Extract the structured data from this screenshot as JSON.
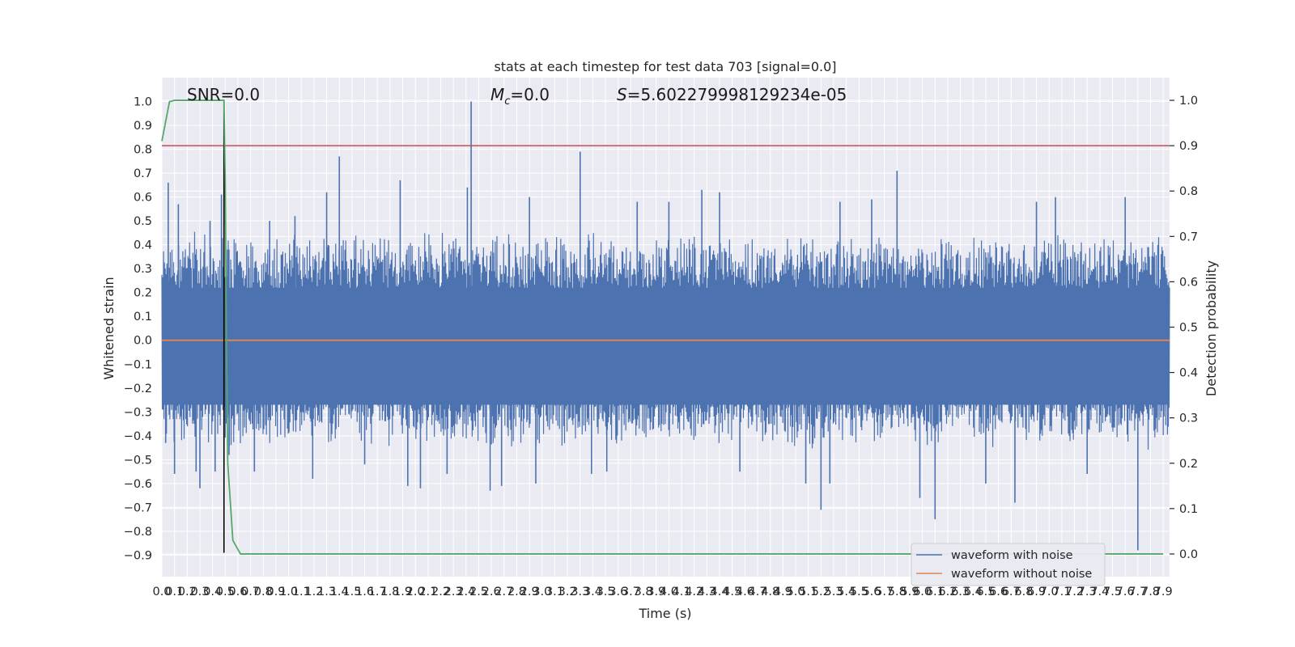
{
  "chart_data": {
    "type": "line",
    "title": "stats at each timestep for test data 703 [signal=0.0]",
    "xlabel": "Time (s)",
    "ylabel": "Whitened strain",
    "y2label": "Detection probability",
    "xlim": [
      0.0,
      7.95
    ],
    "ylim": [
      -0.99,
      1.1
    ],
    "y2lim": [
      -0.05,
      1.05
    ],
    "xticks": [
      0.0,
      0.1,
      0.2,
      0.3,
      0.4,
      0.5,
      0.6,
      0.7,
      0.8,
      0.9,
      1.0,
      1.1,
      1.2,
      1.3,
      1.4,
      1.5,
      1.6,
      1.7,
      1.8,
      1.9,
      2.0,
      2.1,
      2.2,
      2.3,
      2.4,
      2.5,
      2.6,
      2.7,
      2.8,
      2.9,
      3.0,
      3.1,
      3.2,
      3.3,
      3.4,
      3.5,
      3.6,
      3.7,
      3.8,
      3.9,
      4.0,
      4.1,
      4.2,
      4.3,
      4.4,
      4.5,
      4.6,
      4.7,
      4.8,
      4.9,
      5.0,
      5.1,
      5.2,
      5.3,
      5.4,
      5.5,
      5.6,
      5.7,
      5.8,
      5.9,
      6.0,
      6.1,
      6.2,
      6.3,
      6.4,
      6.5,
      6.6,
      6.7,
      6.8,
      6.9,
      7.0,
      7.1,
      7.2,
      7.3,
      7.4,
      7.5,
      7.6,
      7.7,
      7.8,
      7.9
    ],
    "xtick_labels": [
      "0.0",
      "0.1",
      "0.2",
      "0.3",
      "0.4",
      "0.5",
      "0.6",
      "0.7",
      "0.8",
      "0.9",
      "1.0",
      "1.1",
      "1.2",
      "1.3",
      "1.4",
      "1.5",
      "1.6",
      "1.7",
      "1.8",
      "1.9",
      "2.0",
      "2.1",
      "2.2",
      "2.3",
      "2.4",
      "2.5",
      "2.6",
      "2.7",
      "2.8",
      "2.9",
      "3.0",
      "3.1",
      "3.2",
      "3.3",
      "3.4",
      "3.5",
      "3.6",
      "3.7",
      "3.8",
      "3.9",
      "4.0",
      "4.1",
      "4.2",
      "4.3",
      "4.4",
      "4.5",
      "4.6",
      "4.7",
      "4.8",
      "4.9",
      "5.0",
      "5.1",
      "5.2",
      "5.3",
      "5.4",
      "5.5",
      "5.6",
      "5.7",
      "5.8",
      "5.9",
      "6.0",
      "6.1",
      "6.2",
      "6.3",
      "6.4",
      "6.5",
      "6.6",
      "6.7",
      "6.8",
      "6.9",
      "7.0",
      "7.1",
      "7.2",
      "7.3",
      "7.4",
      "7.5",
      "7.6",
      "7.7",
      "7.8",
      "7.9"
    ],
    "yticks": [
      1.0,
      0.9,
      0.8,
      0.7,
      0.6,
      0.5,
      0.4,
      0.3,
      0.2,
      0.1,
      0.0,
      -0.1,
      -0.2,
      -0.3,
      -0.4,
      -0.5,
      -0.6,
      -0.7,
      -0.8,
      -0.9
    ],
    "ytick_labels": [
      "1.0",
      "0.9",
      "0.8",
      "0.7",
      "0.6",
      "0.5",
      "0.4",
      "0.3",
      "0.2",
      "0.1",
      "0.0",
      "−0.1",
      "−0.2",
      "−0.3",
      "−0.4",
      "−0.5",
      "−0.6",
      "−0.7",
      "−0.8",
      "−0.9"
    ],
    "y2ticks": [
      1.0,
      0.9,
      0.8,
      0.7,
      0.6,
      0.5,
      0.4,
      0.3,
      0.2,
      0.1,
      0.0
    ],
    "y2tick_labels": [
      "1.0",
      "0.9",
      "0.8",
      "0.7",
      "0.6",
      "0.5",
      "0.4",
      "0.3",
      "0.2",
      "0.1",
      "0.0"
    ],
    "annotations": {
      "snr": "SNR=0.0",
      "mc_symbol": "M",
      "mc_sub": "c",
      "mc_value": "=0.0",
      "s_symbol": "S",
      "s_value": "=5.602279998129234e-05"
    },
    "grid": true,
    "legend_position": "lower-right",
    "series": [
      {
        "name": "waveform with noise",
        "color": "#4c72b0",
        "axis": "left",
        "style": "noise",
        "amplitude_typical": 0.4,
        "spikes": [
          {
            "x": 0.05,
            "y": 0.66
          },
          {
            "x": 0.03,
            "y": -0.43
          },
          {
            "x": 0.13,
            "y": 0.57
          },
          {
            "x": 0.1,
            "y": -0.56
          },
          {
            "x": 0.27,
            "y": -0.55
          },
          {
            "x": 0.3,
            "y": -0.62
          },
          {
            "x": 0.38,
            "y": 0.5
          },
          {
            "x": 0.47,
            "y": 0.61
          },
          {
            "x": 0.42,
            "y": -0.55
          },
          {
            "x": 0.53,
            "y": -0.48
          },
          {
            "x": 0.73,
            "y": -0.55
          },
          {
            "x": 0.85,
            "y": 0.5
          },
          {
            "x": 1.05,
            "y": 0.52
          },
          {
            "x": 1.19,
            "y": -0.58
          },
          {
            "x": 1.3,
            "y": 0.62
          },
          {
            "x": 1.4,
            "y": 0.77
          },
          {
            "x": 1.6,
            "y": -0.52
          },
          {
            "x": 1.88,
            "y": 0.67
          },
          {
            "x": 1.94,
            "y": -0.61
          },
          {
            "x": 2.04,
            "y": -0.62
          },
          {
            "x": 2.25,
            "y": -0.56
          },
          {
            "x": 2.41,
            "y": 0.64
          },
          {
            "x": 2.44,
            "y": 1.0
          },
          {
            "x": 2.59,
            "y": -0.63
          },
          {
            "x": 2.68,
            "y": -0.61
          },
          {
            "x": 2.9,
            "y": 0.6
          },
          {
            "x": 2.95,
            "y": -0.6
          },
          {
            "x": 3.3,
            "y": 0.79
          },
          {
            "x": 3.39,
            "y": -0.56
          },
          {
            "x": 3.51,
            "y": -0.55
          },
          {
            "x": 3.75,
            "y": 0.58
          },
          {
            "x": 4.0,
            "y": 0.58
          },
          {
            "x": 4.26,
            "y": 0.63
          },
          {
            "x": 4.4,
            "y": 0.62
          },
          {
            "x": 4.56,
            "y": -0.55
          },
          {
            "x": 5.08,
            "y": -0.6
          },
          {
            "x": 5.2,
            "y": -0.71
          },
          {
            "x": 5.27,
            "y": -0.6
          },
          {
            "x": 5.35,
            "y": 0.58
          },
          {
            "x": 5.6,
            "y": 0.59
          },
          {
            "x": 5.8,
            "y": 0.71
          },
          {
            "x": 5.98,
            "y": -0.66
          },
          {
            "x": 6.1,
            "y": -0.75
          },
          {
            "x": 6.5,
            "y": -0.6
          },
          {
            "x": 6.73,
            "y": -0.68
          },
          {
            "x": 6.9,
            "y": 0.58
          },
          {
            "x": 7.05,
            "y": 0.6
          },
          {
            "x": 7.3,
            "y": -0.56
          },
          {
            "x": 7.6,
            "y": 0.6
          },
          {
            "x": 7.7,
            "y": -0.88
          }
        ]
      },
      {
        "name": "waveform without noise",
        "color": "#dd8452",
        "axis": "left",
        "x": [
          0.0,
          7.95
        ],
        "y": [
          0.0,
          0.0
        ]
      },
      {
        "name": "detection probability",
        "color": "#55a868",
        "axis": "right",
        "x": [
          0.0,
          0.06,
          0.1,
          0.15,
          0.2,
          0.3,
          0.4,
          0.49,
          0.5,
          0.51,
          0.52,
          0.56,
          0.62,
          0.7,
          7.9
        ],
        "y": [
          0.91,
          0.997,
          1.0,
          1.0,
          1.0,
          1.0,
          1.0,
          1.0,
          0.82,
          0.45,
          0.2,
          0.03,
          0.0,
          0.0,
          0.0
        ]
      }
    ],
    "threshold": {
      "value": 0.9,
      "axis": "right",
      "color": "#c44e52"
    },
    "vertical_marker": {
      "x": 0.49,
      "y_top": 1.0,
      "y_bottom": -0.89,
      "color": "#000000"
    }
  }
}
